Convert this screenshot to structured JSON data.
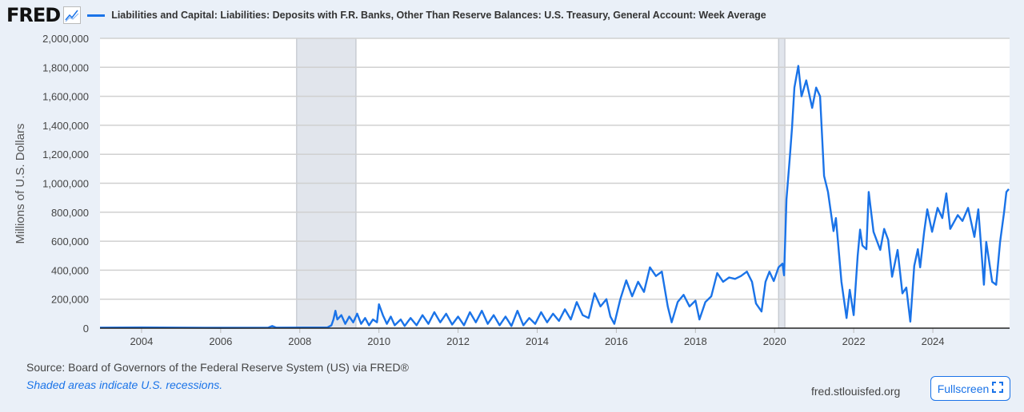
{
  "header": {
    "logo_text": "FRED",
    "title": "Liabilities and Capital: Liabilities: Deposits with F.R. Banks, Other Than Reserve Balances: U.S. Treasury, General Account: Week Average"
  },
  "footer": {
    "source": "Source: Board of Governors of the Federal Reserve System (US) via FRED®",
    "note": "Shaded areas indicate U.S. recessions.",
    "site": "fred.stlouisfed.org",
    "fullscreen_label": "Fullscreen"
  },
  "colors": {
    "series": "#1a73e8",
    "recession": "#e1e5ec",
    "background": "#eaf0f8"
  },
  "chart_data": {
    "type": "line",
    "title": "Liabilities and Capital: Liabilities: Deposits with F.R. Banks, Other Than Reserve Balances: U.S. Treasury, General Account: Week Average",
    "xlabel": "",
    "ylabel": "Millions of U.S. Dollars",
    "xlim": [
      2002.95,
      2025.94
    ],
    "ylim": [
      0,
      2000000
    ],
    "grid": true,
    "x_ticks": [
      "2004",
      "2006",
      "2008",
      "2010",
      "2012",
      "2014",
      "2016",
      "2018",
      "2020",
      "2022",
      "2024"
    ],
    "y_ticks": [
      "0",
      "200,000",
      "400,000",
      "600,000",
      "800,000",
      "1,000,000",
      "1,200,000",
      "1,400,000",
      "1,600,000",
      "1,800,000",
      "2,000,000"
    ],
    "recessions": [
      [
        2007.92,
        2009.42
      ],
      [
        2020.1,
        2020.26
      ]
    ],
    "series": [
      {
        "points": [
          [
            2002.95,
            4000
          ],
          [
            2004,
            5000
          ],
          [
            2005,
            4000
          ],
          [
            2006,
            3000
          ],
          [
            2007.2,
            4000
          ],
          [
            2007.3,
            15000
          ],
          [
            2007.4,
            4000
          ],
          [
            2008.7,
            5000
          ],
          [
            2008.8,
            20000
          ],
          [
            2008.85,
            60000
          ],
          [
            2008.9,
            120000
          ],
          [
            2008.95,
            60000
          ],
          [
            2009.05,
            90000
          ],
          [
            2009.15,
            30000
          ],
          [
            2009.25,
            80000
          ],
          [
            2009.35,
            40000
          ],
          [
            2009.45,
            100000
          ],
          [
            2009.55,
            30000
          ],
          [
            2009.65,
            70000
          ],
          [
            2009.75,
            20000
          ],
          [
            2009.85,
            60000
          ],
          [
            2009.95,
            40000
          ],
          [
            2010.0,
            165000
          ],
          [
            2010.1,
            90000
          ],
          [
            2010.2,
            30000
          ],
          [
            2010.3,
            80000
          ],
          [
            2010.4,
            20000
          ],
          [
            2010.55,
            60000
          ],
          [
            2010.65,
            15000
          ],
          [
            2010.8,
            70000
          ],
          [
            2010.95,
            20000
          ],
          [
            2011.1,
            90000
          ],
          [
            2011.25,
            30000
          ],
          [
            2011.4,
            110000
          ],
          [
            2011.55,
            40000
          ],
          [
            2011.7,
            100000
          ],
          [
            2011.85,
            25000
          ],
          [
            2012.0,
            80000
          ],
          [
            2012.15,
            20000
          ],
          [
            2012.3,
            110000
          ],
          [
            2012.45,
            40000
          ],
          [
            2012.6,
            120000
          ],
          [
            2012.75,
            30000
          ],
          [
            2012.9,
            90000
          ],
          [
            2013.05,
            20000
          ],
          [
            2013.2,
            80000
          ],
          [
            2013.35,
            15000
          ],
          [
            2013.5,
            120000
          ],
          [
            2013.65,
            20000
          ],
          [
            2013.8,
            70000
          ],
          [
            2013.95,
            30000
          ],
          [
            2014.1,
            110000
          ],
          [
            2014.25,
            40000
          ],
          [
            2014.4,
            100000
          ],
          [
            2014.55,
            50000
          ],
          [
            2014.7,
            130000
          ],
          [
            2014.85,
            60000
          ],
          [
            2015.0,
            180000
          ],
          [
            2015.15,
            90000
          ],
          [
            2015.3,
            70000
          ],
          [
            2015.45,
            240000
          ],
          [
            2015.6,
            150000
          ],
          [
            2015.75,
            200000
          ],
          [
            2015.85,
            80000
          ],
          [
            2015.95,
            30000
          ],
          [
            2016.1,
            200000
          ],
          [
            2016.25,
            330000
          ],
          [
            2016.4,
            220000
          ],
          [
            2016.55,
            320000
          ],
          [
            2016.7,
            250000
          ],
          [
            2016.85,
            420000
          ],
          [
            2017.0,
            360000
          ],
          [
            2017.15,
            390000
          ],
          [
            2017.3,
            150000
          ],
          [
            2017.4,
            40000
          ],
          [
            2017.55,
            180000
          ],
          [
            2017.7,
            230000
          ],
          [
            2017.85,
            150000
          ],
          [
            2018.0,
            190000
          ],
          [
            2018.1,
            60000
          ],
          [
            2018.25,
            180000
          ],
          [
            2018.4,
            220000
          ],
          [
            2018.55,
            380000
          ],
          [
            2018.7,
            320000
          ],
          [
            2018.85,
            350000
          ],
          [
            2019.0,
            340000
          ],
          [
            2019.15,
            360000
          ],
          [
            2019.3,
            390000
          ],
          [
            2019.43,
            320000
          ],
          [
            2019.53,
            170000
          ],
          [
            2019.67,
            115000
          ],
          [
            2019.77,
            320000
          ],
          [
            2019.87,
            390000
          ],
          [
            2019.98,
            325000
          ],
          [
            2020.1,
            420000
          ],
          [
            2020.2,
            445000
          ],
          [
            2020.24,
            365000
          ],
          [
            2020.3,
            890000
          ],
          [
            2020.38,
            1160000
          ],
          [
            2020.44,
            1380000
          ],
          [
            2020.5,
            1660000
          ],
          [
            2020.6,
            1810000
          ],
          [
            2020.68,
            1600000
          ],
          [
            2020.8,
            1710000
          ],
          [
            2020.95,
            1520000
          ],
          [
            2021.05,
            1660000
          ],
          [
            2021.15,
            1600000
          ],
          [
            2021.25,
            1050000
          ],
          [
            2021.35,
            940000
          ],
          [
            2021.49,
            670000
          ],
          [
            2021.55,
            760000
          ],
          [
            2021.69,
            320000
          ],
          [
            2021.82,
            70000
          ],
          [
            2021.9,
            265000
          ],
          [
            2022.0,
            90000
          ],
          [
            2022.1,
            500000
          ],
          [
            2022.16,
            680000
          ],
          [
            2022.22,
            570000
          ],
          [
            2022.32,
            545000
          ],
          [
            2022.38,
            940000
          ],
          [
            2022.5,
            665000
          ],
          [
            2022.67,
            540000
          ],
          [
            2022.77,
            685000
          ],
          [
            2022.87,
            610000
          ],
          [
            2022.97,
            355000
          ],
          [
            2023.11,
            540000
          ],
          [
            2023.23,
            240000
          ],
          [
            2023.33,
            280000
          ],
          [
            2023.43,
            45000
          ],
          [
            2023.53,
            430000
          ],
          [
            2023.62,
            545000
          ],
          [
            2023.68,
            420000
          ],
          [
            2023.78,
            665000
          ],
          [
            2023.86,
            820000
          ],
          [
            2023.98,
            665000
          ],
          [
            2024.12,
            830000
          ],
          [
            2024.24,
            760000
          ],
          [
            2024.34,
            930000
          ],
          [
            2024.44,
            685000
          ],
          [
            2024.63,
            780000
          ],
          [
            2024.75,
            740000
          ],
          [
            2024.89,
            830000
          ],
          [
            2025.05,
            630000
          ],
          [
            2025.15,
            820000
          ],
          [
            2025.29,
            300000
          ],
          [
            2025.35,
            595000
          ],
          [
            2025.5,
            320000
          ],
          [
            2025.6,
            300000
          ],
          [
            2025.7,
            595000
          ],
          [
            2025.8,
            800000
          ],
          [
            2025.86,
            940000
          ],
          [
            2025.92,
            960000
          ]
        ]
      }
    ]
  }
}
